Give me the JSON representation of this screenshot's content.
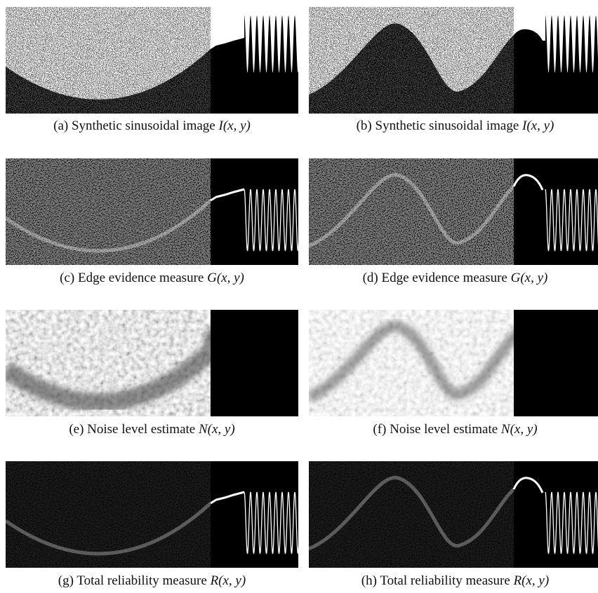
{
  "panels": [
    {
      "label": "(a)",
      "text": "Synthetic sinusoidal image",
      "symbol": "I(x, y)"
    },
    {
      "label": "(b)",
      "text": "Synthetic sinusoidal image",
      "symbol": "I(x, y)"
    },
    {
      "label": "(c)",
      "text": "Edge evidence measure",
      "symbol": "G(x, y)"
    },
    {
      "label": "(d)",
      "text": "Edge evidence measure",
      "symbol": "G(x, y)"
    },
    {
      "label": "(e)",
      "text": "Noise level estimate",
      "symbol": "N(x, y)"
    },
    {
      "label": "(f)",
      "text": "Noise level estimate",
      "symbol": "N(x, y)"
    },
    {
      "label": "(g)",
      "text": "Total reliability measure",
      "symbol": "R(x, y)"
    },
    {
      "label": "(h)",
      "text": "Total reliability measure",
      "symbol": "R(x, y)"
    }
  ]
}
